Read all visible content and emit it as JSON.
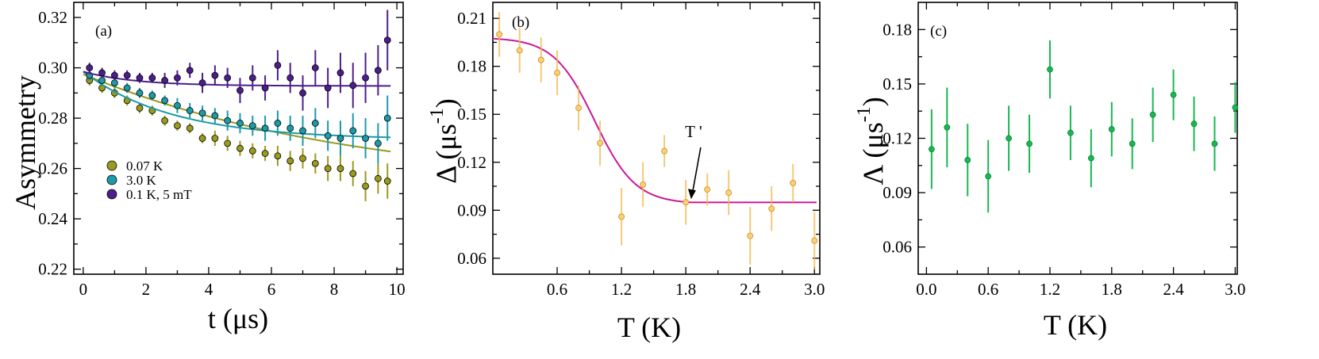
{
  "chart_data": [
    {
      "panel": "(a)",
      "type": "scatter",
      "xlabel": "t (μs)",
      "ylabel": "Asymmetry",
      "xlim": [
        -0.3,
        10.2
      ],
      "ylim": [
        0.218,
        0.326
      ],
      "xticks": [
        0,
        2,
        4,
        6,
        8,
        10
      ],
      "xtick_labels": [
        "0",
        "2",
        "4",
        "6",
        "8",
        "10"
      ],
      "yticks": [
        0.22,
        0.24,
        0.26,
        0.28,
        0.3,
        0.32
      ],
      "ytick_labels": [
        "0.22",
        "0.24",
        "0.26",
        "0.28",
        "0.30",
        "0.32"
      ],
      "legend_position": "left-middle",
      "series": [
        {
          "name": "0.07 K",
          "color": "#9a9a1e",
          "fit": {
            "model": "exp",
            "A0": 0.2975,
            "Abg": 0.252,
            "lambda": 0.115,
            "tmax": 9.8
          },
          "x": [
            0.2,
            0.6,
            1.0,
            1.4,
            1.8,
            2.2,
            2.6,
            3.0,
            3.4,
            3.8,
            4.2,
            4.6,
            5.0,
            5.4,
            5.8,
            6.2,
            6.6,
            7.0,
            7.4,
            7.8,
            8.2,
            8.6,
            9.0,
            9.4,
            9.7
          ],
          "y": [
            0.295,
            0.292,
            0.29,
            0.287,
            0.284,
            0.283,
            0.279,
            0.277,
            0.276,
            0.272,
            0.272,
            0.27,
            0.268,
            0.267,
            0.266,
            0.265,
            0.263,
            0.264,
            0.262,
            0.26,
            0.26,
            0.258,
            0.253,
            0.256,
            0.255
          ],
          "err": [
            0.002,
            0.002,
            0.002,
            0.002,
            0.002,
            0.002,
            0.002,
            0.002,
            0.002,
            0.002,
            0.003,
            0.003,
            0.003,
            0.003,
            0.003,
            0.004,
            0.004,
            0.004,
            0.004,
            0.005,
            0.005,
            0.005,
            0.006,
            0.006,
            0.007
          ]
        },
        {
          "name": "3.0 K",
          "color": "#1b9aa8",
          "fit": {
            "model": "exp",
            "A0": 0.2985,
            "Abg": 0.2715,
            "lambda": 0.35,
            "tmax": 9.8
          },
          "x": [
            0.2,
            0.6,
            1.0,
            1.4,
            1.8,
            2.2,
            2.6,
            3.0,
            3.4,
            3.8,
            4.2,
            4.6,
            5.0,
            5.4,
            5.8,
            6.2,
            6.6,
            7.0,
            7.4,
            7.8,
            8.2,
            8.6,
            9.0,
            9.4,
            9.7
          ],
          "y": [
            0.297,
            0.295,
            0.294,
            0.292,
            0.29,
            0.289,
            0.287,
            0.285,
            0.283,
            0.282,
            0.281,
            0.279,
            0.278,
            0.277,
            0.276,
            0.278,
            0.276,
            0.275,
            0.278,
            0.273,
            0.272,
            0.275,
            0.272,
            0.27,
            0.28
          ],
          "err": [
            0.002,
            0.002,
            0.002,
            0.002,
            0.002,
            0.002,
            0.002,
            0.003,
            0.003,
            0.003,
            0.003,
            0.004,
            0.004,
            0.004,
            0.005,
            0.005,
            0.005,
            0.006,
            0.006,
            0.006,
            0.007,
            0.007,
            0.008,
            0.008,
            0.009
          ]
        },
        {
          "name": "0.1 K, 5 mT",
          "color": "#4b1e8c",
          "fit": {
            "model": "exp",
            "A0": 0.2985,
            "Abg": 0.2928,
            "lambda": 0.6,
            "tmax": 9.8
          },
          "x": [
            0.2,
            0.6,
            1.0,
            1.4,
            1.8,
            2.2,
            2.6,
            3.0,
            3.4,
            3.8,
            4.2,
            4.6,
            5.0,
            5.4,
            5.8,
            6.2,
            6.6,
            7.0,
            7.4,
            7.8,
            8.2,
            8.6,
            9.0,
            9.4,
            9.7
          ],
          "y": [
            0.3,
            0.298,
            0.297,
            0.297,
            0.296,
            0.296,
            0.295,
            0.296,
            0.299,
            0.294,
            0.297,
            0.296,
            0.291,
            0.296,
            0.292,
            0.301,
            0.296,
            0.29,
            0.3,
            0.292,
            0.298,
            0.293,
            0.296,
            0.299,
            0.311
          ],
          "err": [
            0.002,
            0.002,
            0.002,
            0.002,
            0.002,
            0.002,
            0.003,
            0.003,
            0.003,
            0.004,
            0.004,
            0.004,
            0.005,
            0.005,
            0.005,
            0.006,
            0.006,
            0.007,
            0.007,
            0.008,
            0.008,
            0.009,
            0.01,
            0.01,
            0.012
          ]
        }
      ]
    },
    {
      "panel": "(b)",
      "type": "scatter",
      "xlabel": "T (K)",
      "ylabel": "Δ (μs",
      "ylabel_sup": "-1",
      "ylabel_close": ")",
      "xlim": [
        0.0,
        3.05
      ],
      "ylim": [
        0.05,
        0.22
      ],
      "xticks": [
        0.6,
        1.2,
        1.8,
        2.4,
        3.0
      ],
      "xtick_labels": [
        "0.6",
        "1.2",
        "1.8",
        "2.4",
        "3.0"
      ],
      "yticks": [
        0.06,
        0.09,
        0.12,
        0.15,
        0.18,
        0.21
      ],
      "ytick_labels": [
        "0.06",
        "0.09",
        "0.12",
        "0.15",
        "0.18",
        "0.21"
      ],
      "annotation": {
        "text": "T '",
        "x": 1.85,
        "y": 0.095
      },
      "series": [
        {
          "name": "",
          "color": "#f2b64a",
          "fit_color": "#c8189c",
          "fit": {
            "model": "tanh",
            "base": 0.094,
            "amp": 0.104,
            "center": 0.95,
            "width": 0.38,
            "cutoff": 1.85
          },
          "x": [
            0.06,
            0.25,
            0.45,
            0.6,
            0.8,
            1.0,
            1.2,
            1.4,
            1.6,
            1.8,
            2.0,
            2.2,
            2.4,
            2.6,
            2.8,
            3.0
          ],
          "y": [
            0.2,
            0.19,
            0.184,
            0.176,
            0.154,
            0.132,
            0.086,
            0.106,
            0.127,
            0.095,
            0.103,
            0.101,
            0.074,
            0.091,
            0.107,
            0.071
          ],
          "err": [
            0.014,
            0.014,
            0.014,
            0.014,
            0.014,
            0.014,
            0.018,
            0.014,
            0.01,
            0.014,
            0.01,
            0.014,
            0.018,
            0.014,
            0.012,
            0.018
          ]
        }
      ]
    },
    {
      "panel": "(c)",
      "type": "scatter",
      "xlabel": "T (K)",
      "ylabel": "Λ (μs",
      "ylabel_sup": "-1",
      "ylabel_close": ")",
      "xlim": [
        -0.08,
        3.02
      ],
      "ylim": [
        0.045,
        0.195
      ],
      "xticks": [
        0.0,
        0.6,
        1.2,
        1.8,
        2.4,
        3.0
      ],
      "xtick_labels": [
        "0.0",
        "0.6",
        "1.2",
        "1.8",
        "2.4",
        "3.0"
      ],
      "yticks": [
        0.06,
        0.09,
        0.12,
        0.15,
        0.18
      ],
      "ytick_labels": [
        "0.06",
        "0.09",
        "0.12",
        "0.15",
        "0.18"
      ],
      "series": [
        {
          "name": "",
          "color": "#17b851",
          "x": [
            0.05,
            0.2,
            0.4,
            0.6,
            0.8,
            1.0,
            1.2,
            1.4,
            1.6,
            1.8,
            2.0,
            2.2,
            2.4,
            2.6,
            2.8,
            3.0
          ],
          "y": [
            0.114,
            0.126,
            0.108,
            0.099,
            0.12,
            0.117,
            0.158,
            0.123,
            0.109,
            0.125,
            0.117,
            0.133,
            0.144,
            0.128,
            0.117,
            0.137
          ],
          "err": [
            0.022,
            0.022,
            0.02,
            0.02,
            0.018,
            0.016,
            0.016,
            0.015,
            0.016,
            0.015,
            0.014,
            0.015,
            0.014,
            0.015,
            0.015,
            0.014
          ]
        }
      ]
    }
  ]
}
